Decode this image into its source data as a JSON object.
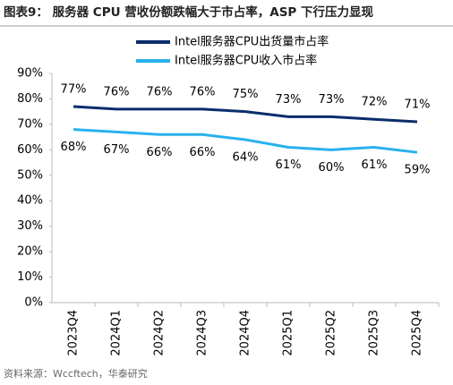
{
  "chart_data": {
    "type": "line",
    "title": "图表9： 服务器 CPU 营收份额跌幅大于市占率，ASP 下行压力显现",
    "source": "资料来源：Wccftech，华泰研究",
    "categories": [
      "2023Q4",
      "2024Q1",
      "2024Q2",
      "2024Q3",
      "2024Q4",
      "2025Q1",
      "2025Q2",
      "2025Q3",
      "2025Q4"
    ],
    "series": [
      {
        "name": "Intel服务器CPU出货量市占率",
        "color": "#0b2d6b",
        "values": [
          77,
          76,
          76,
          76,
          75,
          73,
          73,
          72,
          71
        ],
        "value_labels": [
          "77%",
          "76%",
          "76%",
          "76%",
          "75%",
          "73%",
          "73%",
          "72%",
          "71%"
        ]
      },
      {
        "name": "Intel服务器CPU收入市占率",
        "color": "#29b1ec",
        "values": [
          68,
          67,
          66,
          66,
          64,
          61,
          60,
          61,
          59
        ],
        "value_labels": [
          "68%",
          "67%",
          "66%",
          "66%",
          "64%",
          "61%",
          "60%",
          "61%",
          "59%"
        ]
      }
    ],
    "ylim": [
      0,
      90
    ],
    "yticks": [
      {
        "value": 0,
        "label": "0%"
      },
      {
        "value": 10,
        "label": "10%"
      },
      {
        "value": 20,
        "label": "20%"
      },
      {
        "value": 30,
        "label": "30%"
      },
      {
        "value": 40,
        "label": "40%"
      },
      {
        "value": 50,
        "label": "50%"
      },
      {
        "value": 60,
        "label": "60%"
      },
      {
        "value": 70,
        "label": "70%"
      },
      {
        "value": 80,
        "label": "80%"
      },
      {
        "value": 90,
        "label": "90%"
      }
    ],
    "grid": false,
    "legend": "top"
  }
}
